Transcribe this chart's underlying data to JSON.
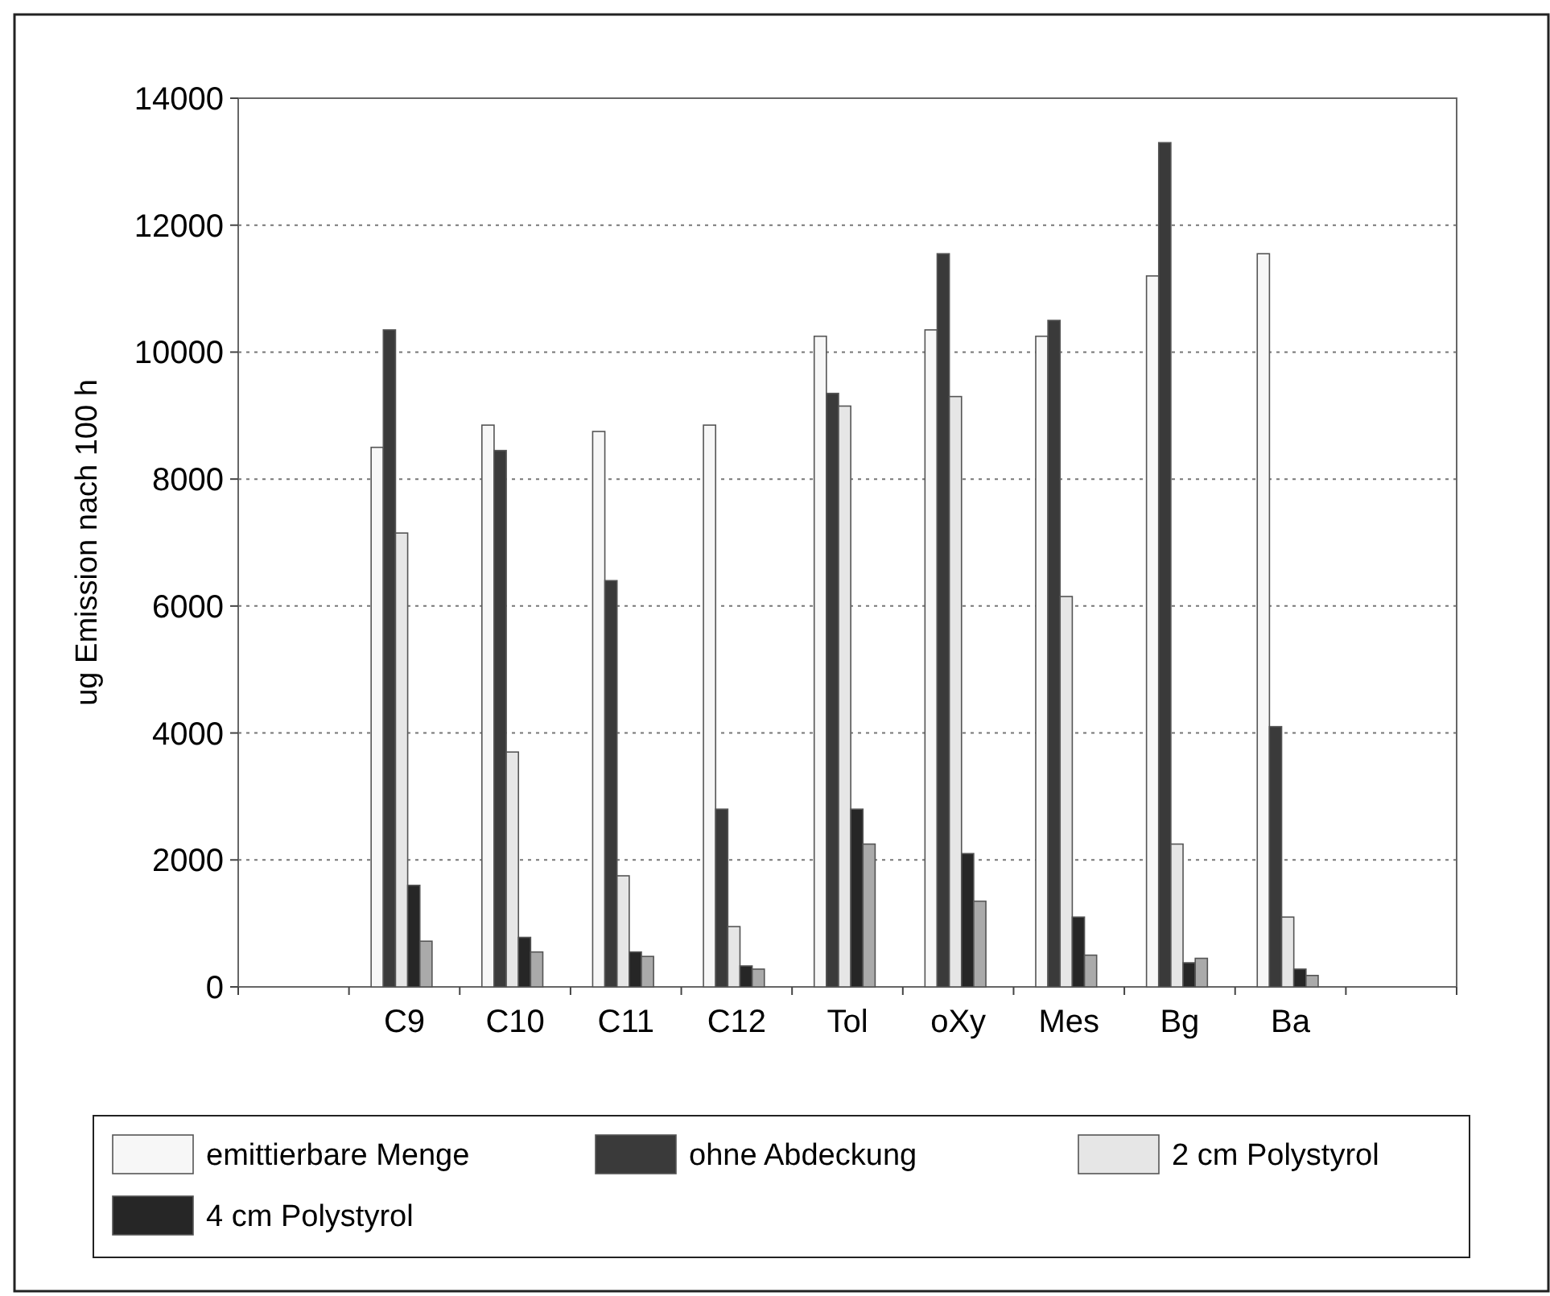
{
  "chart_data": {
    "type": "bar",
    "ylabel": "ug Emission nach 100 h",
    "categories": [
      null,
      "C9",
      "C10",
      "C11",
      "C12",
      "Tol",
      "oXy",
      "Mes",
      "Bg",
      "Ba",
      null
    ],
    "series": [
      {
        "name": "emittierbare Menge",
        "color": "#f7f7f7",
        "values": [
          null,
          8500,
          8850,
          8750,
          8850,
          10250,
          10350,
          10250,
          11200,
          11550,
          null
        ]
      },
      {
        "name": "ohne Abdeckung",
        "color": "#3a3a3a",
        "values": [
          null,
          10350,
          8450,
          6400,
          2800,
          9350,
          11550,
          10500,
          13300,
          4100,
          null
        ]
      },
      {
        "name": "2 cm Polystyrol",
        "color": "#e6e6e6",
        "values": [
          null,
          7150,
          3700,
          1750,
          950,
          9150,
          9300,
          6150,
          2250,
          1100,
          null
        ]
      },
      {
        "name": "4 cm Polystyrol",
        "color": "#262626",
        "values": [
          null,
          1600,
          780,
          550,
          330,
          2800,
          2100,
          1100,
          380,
          280,
          null
        ]
      },
      {
        "color": "#aaaaaa",
        "values": [
          null,
          720,
          550,
          480,
          280,
          2250,
          1350,
          500,
          450,
          180,
          null
        ]
      }
    ],
    "ylim": [
      0,
      14000
    ],
    "yticks": [
      0,
      2000,
      4000,
      6000,
      8000,
      10000,
      12000,
      14000
    ],
    "grid": "y",
    "legend": "bottom"
  }
}
